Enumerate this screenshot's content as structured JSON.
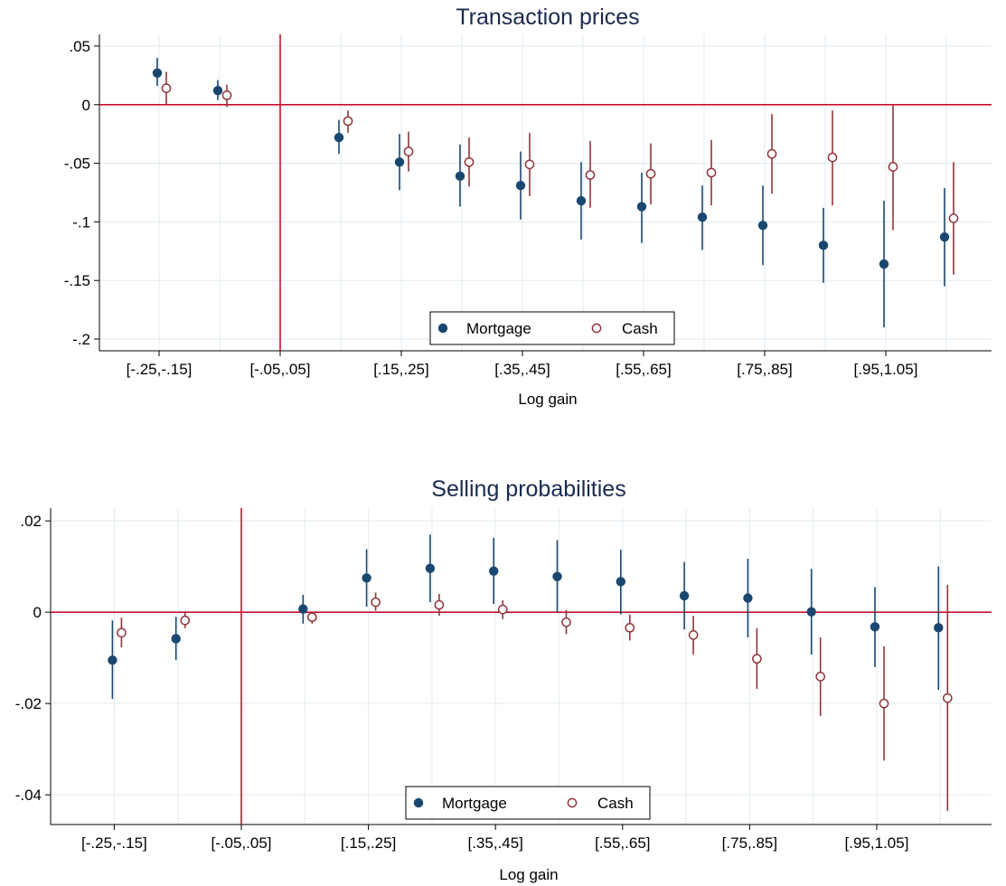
{
  "colors": {
    "mortgage": "#1a476f",
    "cash": "#90353b",
    "reference_line": "#c8102e",
    "grid": "#e6eef3",
    "title": "#1a2a4f"
  },
  "chart_data": [
    {
      "type": "scatter",
      "title": "Transaction prices",
      "xlabel": "Log gain",
      "ylabel": "",
      "x_tick_labels": [
        "[-.25,-.15]",
        "[-.05,.05]",
        "[.15,.25]",
        "[.35,.45]",
        "[.55,.65]",
        "[.75,.85]",
        "[.95,1.05]"
      ],
      "x_bins": [
        -0.2,
        -0.1,
        0.0,
        0.1,
        0.2,
        0.3,
        0.4,
        0.5,
        0.6,
        0.7,
        0.8,
        0.9,
        1.0,
        1.1
      ],
      "y_ticks": [
        0.05,
        0,
        -0.05,
        -0.1,
        -0.15,
        -0.2
      ],
      "y_tick_labels": [
        ".05",
        "0",
        "-.05",
        "-.1",
        "-.15",
        "-.2"
      ],
      "ylim": [
        -0.21,
        0.06
      ],
      "grid": true,
      "legend_position": "bottom-center",
      "reference_lines": {
        "horizontal": 0,
        "vertical": 0.0
      },
      "series": [
        {
          "name": "Mortgage",
          "marker": "filled-circle",
          "values": [
            0.027,
            0.012,
            null,
            -0.028,
            -0.049,
            -0.061,
            -0.069,
            -0.082,
            -0.087,
            -0.096,
            -0.103,
            -0.12,
            -0.136,
            -0.113
          ],
          "ci_low": [
            0.016,
            0.004,
            null,
            -0.042,
            -0.073,
            -0.087,
            -0.098,
            -0.115,
            -0.118,
            -0.124,
            -0.137,
            -0.152,
            -0.19,
            -0.155
          ],
          "ci_high": [
            0.04,
            0.021,
            null,
            -0.013,
            -0.025,
            -0.034,
            -0.04,
            -0.049,
            -0.058,
            -0.069,
            -0.069,
            -0.088,
            -0.082,
            -0.071
          ]
        },
        {
          "name": "Cash",
          "marker": "hollow-circle",
          "values": [
            0.014,
            0.008,
            null,
            -0.014,
            -0.04,
            -0.049,
            -0.051,
            -0.06,
            -0.059,
            -0.058,
            -0.042,
            -0.045,
            -0.053,
            -0.097
          ],
          "ci_low": [
            0.0,
            -0.002,
            null,
            -0.024,
            -0.057,
            -0.07,
            -0.078,
            -0.088,
            -0.085,
            -0.086,
            -0.076,
            -0.086,
            -0.107,
            -0.145
          ],
          "ci_high": [
            0.028,
            0.017,
            null,
            -0.005,
            -0.023,
            -0.028,
            -0.024,
            -0.031,
            -0.033,
            -0.03,
            -0.008,
            -0.005,
            0.0,
            -0.049
          ]
        }
      ]
    },
    {
      "type": "scatter",
      "title": "Selling probabilities",
      "xlabel": "Log gain",
      "ylabel": "",
      "x_tick_labels": [
        "[-.25,-.15]",
        "[-.05,.05]",
        "[.15,.25]",
        "[.35,.45]",
        "[.55,.65]",
        "[.75,.85]",
        "[.95,1.05]"
      ],
      "x_bins": [
        -0.2,
        -0.1,
        0.0,
        0.1,
        0.2,
        0.3,
        0.4,
        0.5,
        0.6,
        0.7,
        0.8,
        0.9,
        1.0,
        1.1
      ],
      "y_ticks": [
        0.02,
        0,
        -0.02,
        -0.04
      ],
      "y_tick_labels": [
        ".02",
        "0",
        "-.02",
        "-.04"
      ],
      "ylim": [
        -0.0465,
        0.0228
      ],
      "grid": true,
      "legend_position": "bottom-center",
      "reference_lines": {
        "horizontal": 0,
        "vertical": 0.0
      },
      "series": [
        {
          "name": "Mortgage",
          "marker": "filled-circle",
          "values": [
            -0.0105,
            -0.0058,
            null,
            0.0007,
            0.0075,
            0.0096,
            0.009,
            0.0078,
            0.0067,
            0.0036,
            0.0031,
            0.0001,
            -0.0032,
            -0.0034
          ],
          "ci_low": [
            -0.019,
            -0.0105,
            null,
            -0.0025,
            0.0012,
            0.0022,
            0.0018,
            0.0,
            -0.0005,
            -0.0038,
            -0.0055,
            -0.0093,
            -0.012,
            -0.017
          ],
          "ci_high": [
            -0.0018,
            -0.001,
            null,
            0.0038,
            0.0138,
            0.017,
            0.0163,
            0.0158,
            0.0137,
            0.011,
            0.0117,
            0.0095,
            0.0055,
            0.01
          ]
        },
        {
          "name": "Cash",
          "marker": "hollow-circle",
          "values": [
            -0.0045,
            -0.0018,
            null,
            -0.0011,
            0.0022,
            0.0016,
            0.0006,
            -0.0022,
            -0.0034,
            -0.005,
            -0.0102,
            -0.0141,
            -0.02,
            -0.0188
          ],
          "ci_low": [
            -0.0077,
            -0.0035,
            null,
            -0.0025,
            0.0003,
            -0.0008,
            -0.0015,
            -0.0048,
            -0.0062,
            -0.0093,
            -0.0168,
            -0.0227,
            -0.0325,
            -0.0435
          ],
          "ci_high": [
            -0.0012,
            0.0002,
            null,
            0.0001,
            0.0043,
            0.004,
            0.0026,
            0.0005,
            -0.0005,
            -0.0008,
            -0.0035,
            -0.0055,
            -0.0075,
            0.006
          ]
        }
      ]
    }
  ]
}
